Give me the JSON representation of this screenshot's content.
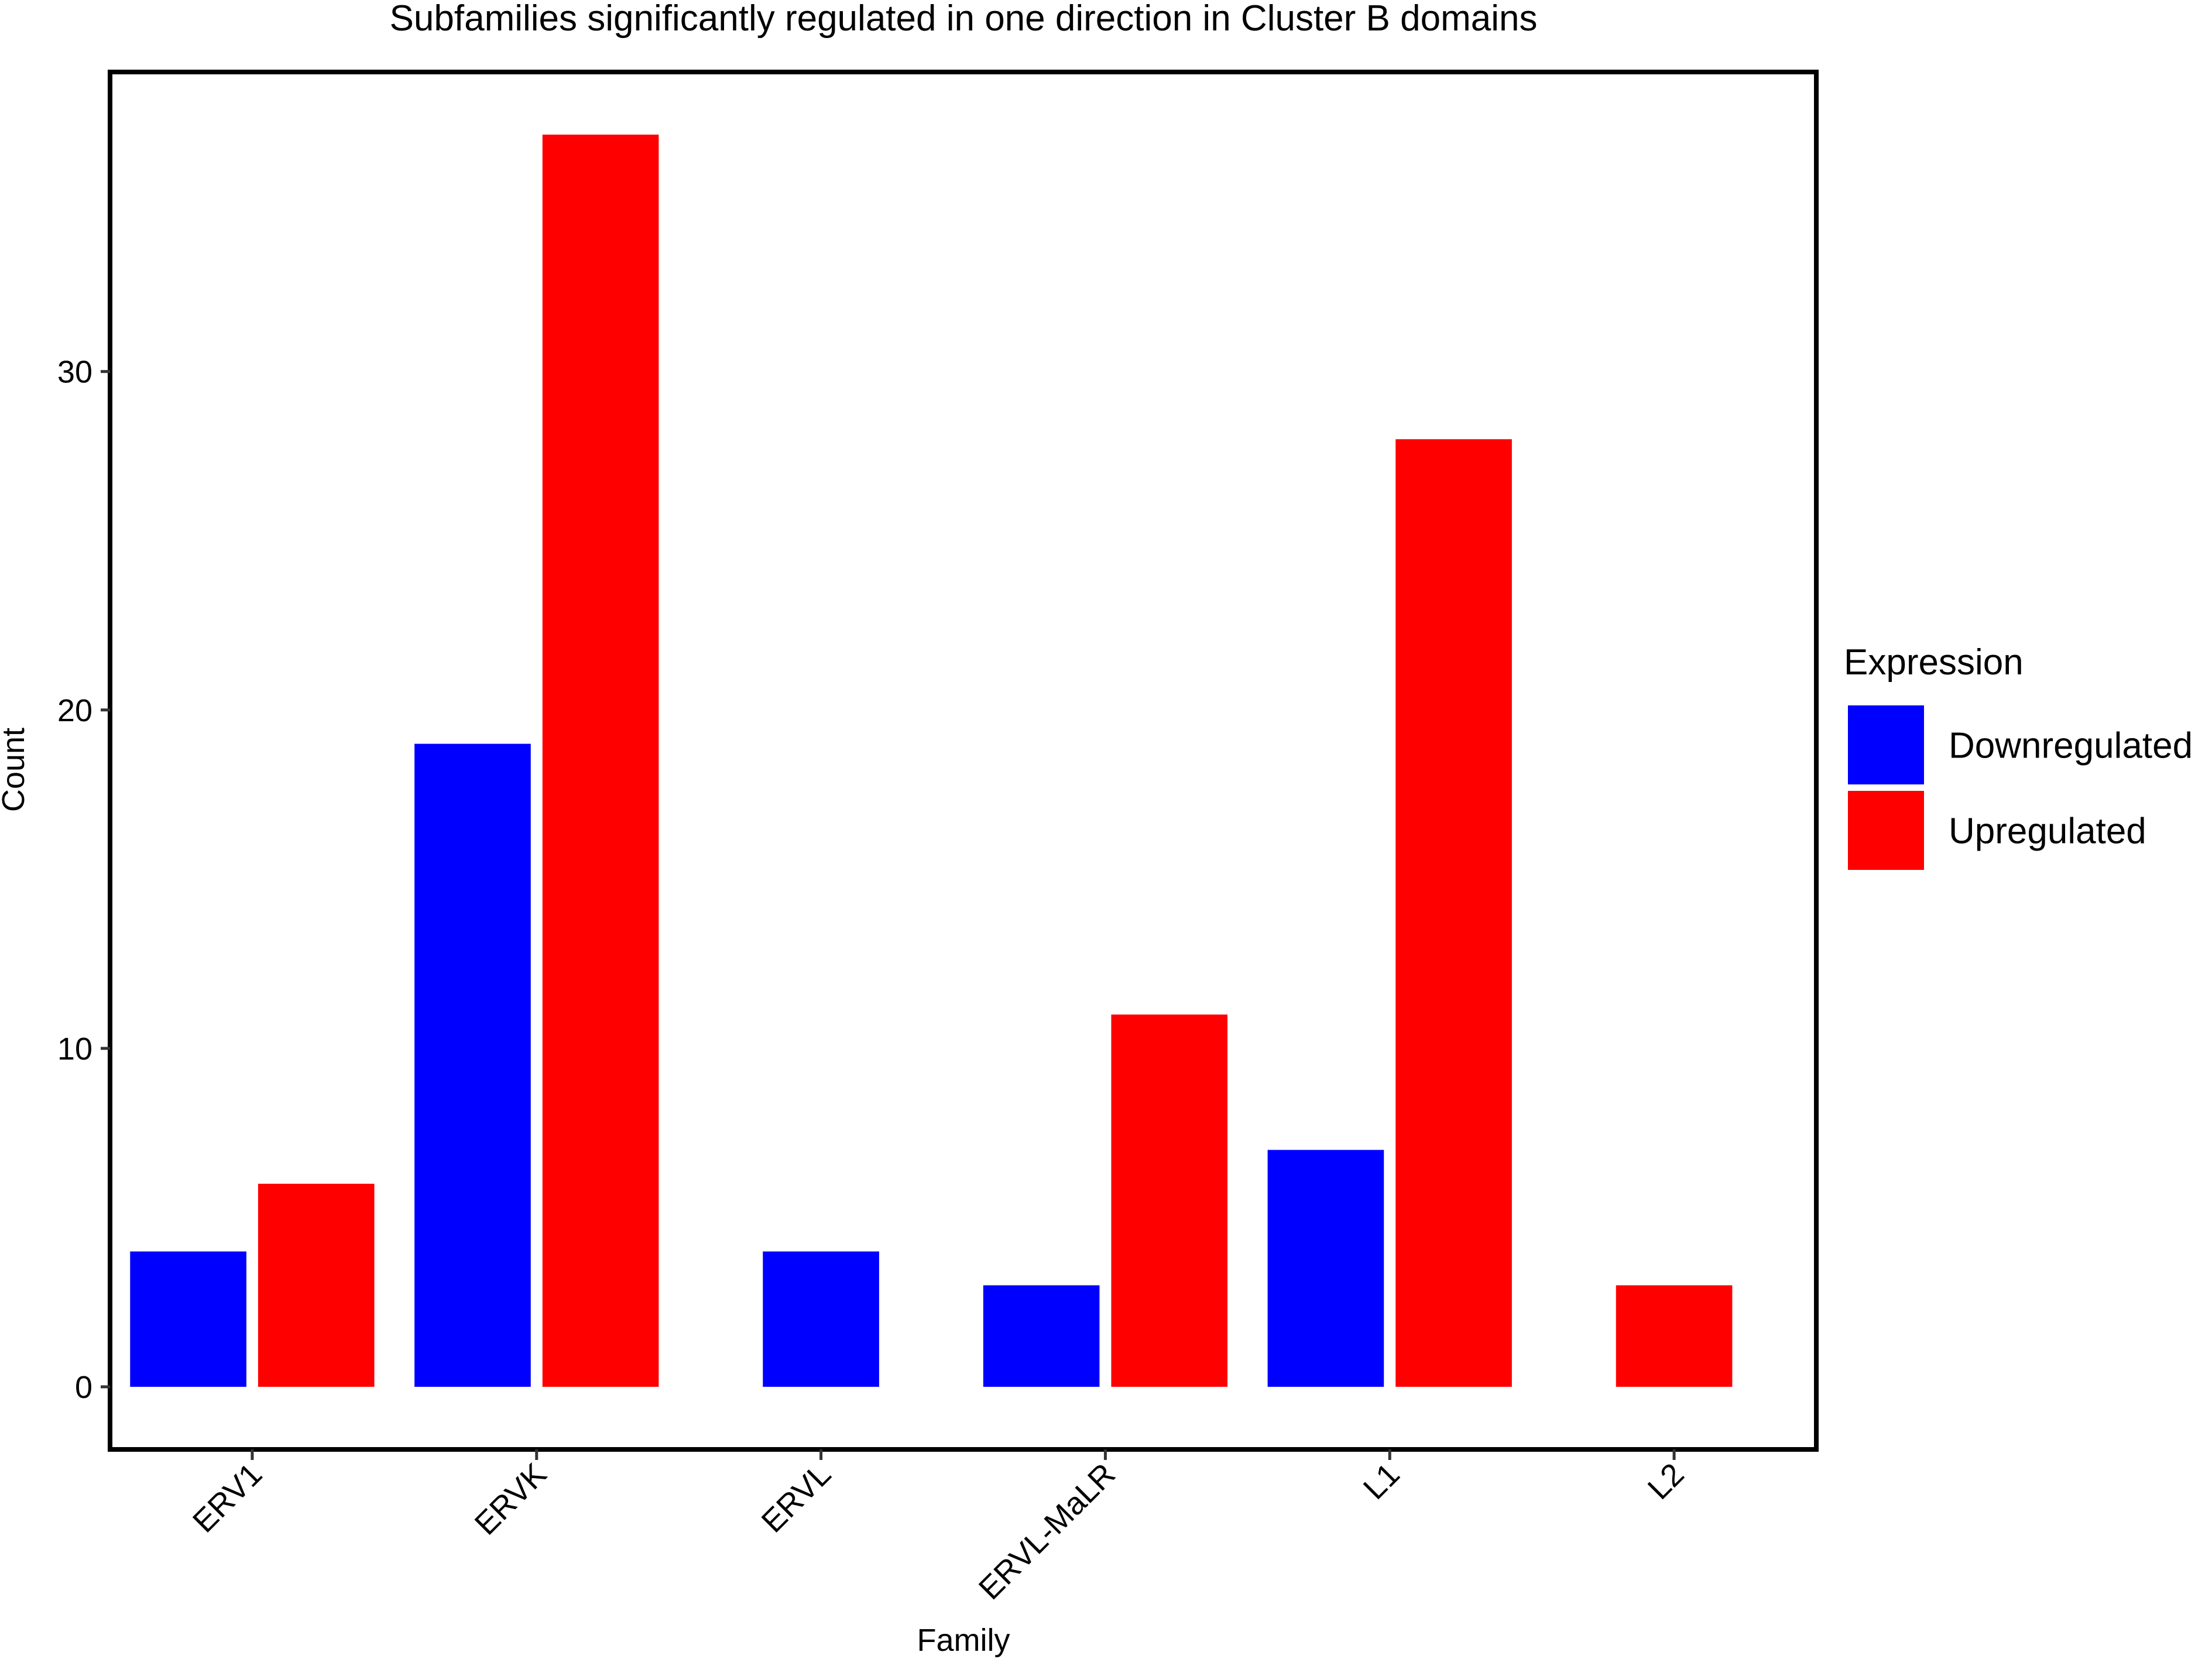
{
  "chart_data": {
    "type": "bar",
    "title": "Subfamilies significantly regulated in one direction in Cluster B domains",
    "xlabel": "Family",
    "ylabel": "Count",
    "categories": [
      "ERV1",
      "ERVK",
      "ERVL",
      "ERVL-MaLR",
      "L1",
      "L2"
    ],
    "series": [
      {
        "name": "Downregulated",
        "color": "#0000ff",
        "values": [
          4,
          19,
          4,
          3,
          7,
          null
        ]
      },
      {
        "name": "Upregulated",
        "color": "#ff0000",
        "values": [
          6,
          37,
          null,
          11,
          28,
          3
        ]
      }
    ],
    "ylim": [
      -1.85,
      38.85
    ],
    "yticks": [
      0,
      10,
      20,
      30
    ],
    "grid": false,
    "legend": {
      "title": "Expression",
      "position": "right"
    }
  }
}
